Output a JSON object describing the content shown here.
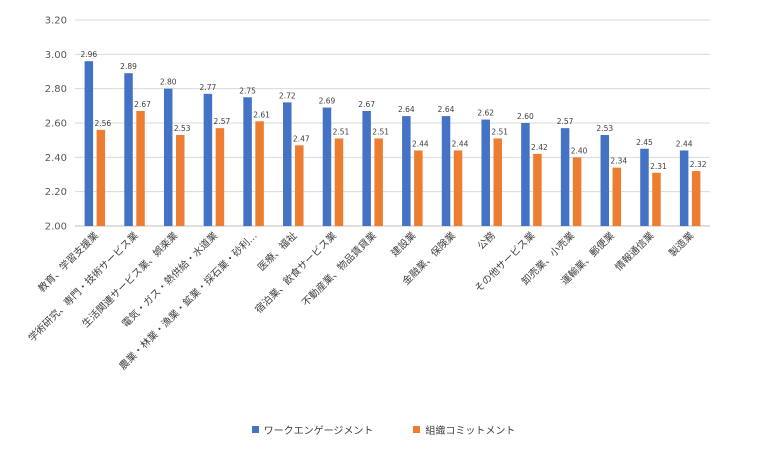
{
  "chart_data": {
    "type": "bar",
    "title": "",
    "xlabel": "",
    "ylabel": "",
    "ylim": [
      2.0,
      3.2
    ],
    "yticks": [
      "2.00",
      "2.20",
      "2.40",
      "2.60",
      "2.80",
      "3.00",
      "3.20"
    ],
    "grid": true,
    "legend_position": "bottom",
    "categories": [
      "教育、学習支援業",
      "学術研究、専門・技術サービス業",
      "生活関連サービス業、娯楽業",
      "電気・ガス・熱供給・水道業",
      "農業・林業・漁業・鉱業・採石業・砂利…",
      "医療、福祉",
      "宿泊業、飲食サービス業",
      "不動産業、物品賃貸業",
      "建設業",
      "金融業、保険業",
      "公務",
      "その他サービス業",
      "卸売業、小売業",
      "運輸業、郵便業",
      "情報通信業",
      "製造業"
    ],
    "series": [
      {
        "name": "ワークエンゲージメント",
        "color": "#4472C4",
        "values": [
          2.96,
          2.89,
          2.8,
          2.77,
          2.75,
          2.72,
          2.69,
          2.67,
          2.64,
          2.64,
          2.62,
          2.6,
          2.57,
          2.53,
          2.45,
          2.44
        ]
      },
      {
        "name": "組織コミットメント",
        "color": "#ED7D31",
        "values": [
          2.56,
          2.67,
          2.53,
          2.57,
          2.61,
          2.47,
          2.51,
          2.51,
          2.44,
          2.44,
          2.51,
          2.42,
          2.4,
          2.34,
          2.31,
          2.32
        ]
      }
    ]
  }
}
